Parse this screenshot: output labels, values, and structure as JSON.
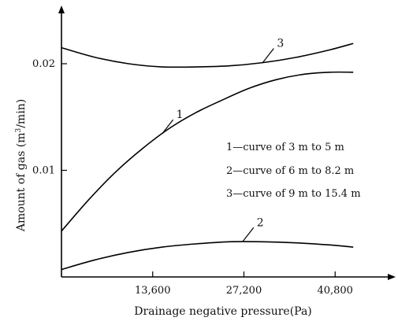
{
  "chart_data": {
    "type": "line",
    "title": "",
    "xlabel": "Drainage negative pressure(Pa)",
    "ylabel_prefix": "Amount of gas (m",
    "ylabel_sup": "3",
    "ylabel_suffix": "/min)",
    "xlim": [
      0,
      47000
    ],
    "ylim": [
      0,
      0.0245
    ],
    "xticks": [
      13600,
      27200,
      40800
    ],
    "xtick_labels": [
      "13,600",
      "27,200",
      "40,800"
    ],
    "yticks": [
      0.01,
      0.02
    ],
    "ytick_labels": [
      "0.01",
      "0.02"
    ],
    "grid": false,
    "series": [
      {
        "name": "1",
        "legend": "1—curve of 3 m to 5 m",
        "x": [
          0,
          4000,
          8000,
          12000,
          16000,
          20000,
          24000,
          28000,
          32000,
          36000,
          40000,
          43500
        ],
        "y": [
          0.0043,
          0.0072,
          0.0098,
          0.012,
          0.0139,
          0.0154,
          0.0166,
          0.0177,
          0.0185,
          0.019,
          0.0192,
          0.0192
        ]
      },
      {
        "name": "2",
        "legend": "2—curve of 6 m to 8.2 m",
        "x": [
          0,
          5000,
          10000,
          15000,
          20000,
          25000,
          30000,
          35000,
          40000,
          43500
        ],
        "y": [
          0.0007,
          0.0016,
          0.0023,
          0.0028,
          0.0031,
          0.0033,
          0.0033,
          0.0032,
          0.003,
          0.0028
        ]
      },
      {
        "name": "3",
        "legend": "3—curve of 9 m to 15.4 m",
        "x": [
          0,
          5000,
          10000,
          15000,
          20000,
          25000,
          30000,
          35000,
          40000,
          43500
        ],
        "y": [
          0.0215,
          0.0206,
          0.02,
          0.0197,
          0.0197,
          0.0198,
          0.0201,
          0.0206,
          0.0213,
          0.0219
        ]
      }
    ],
    "curve_labels": [
      {
        "text": "1",
        "series": 0,
        "at_x": 15000
      },
      {
        "text": "2",
        "series": 1,
        "at_x": 27000
      },
      {
        "text": "3",
        "series": 2,
        "at_x": 30000
      }
    ]
  }
}
